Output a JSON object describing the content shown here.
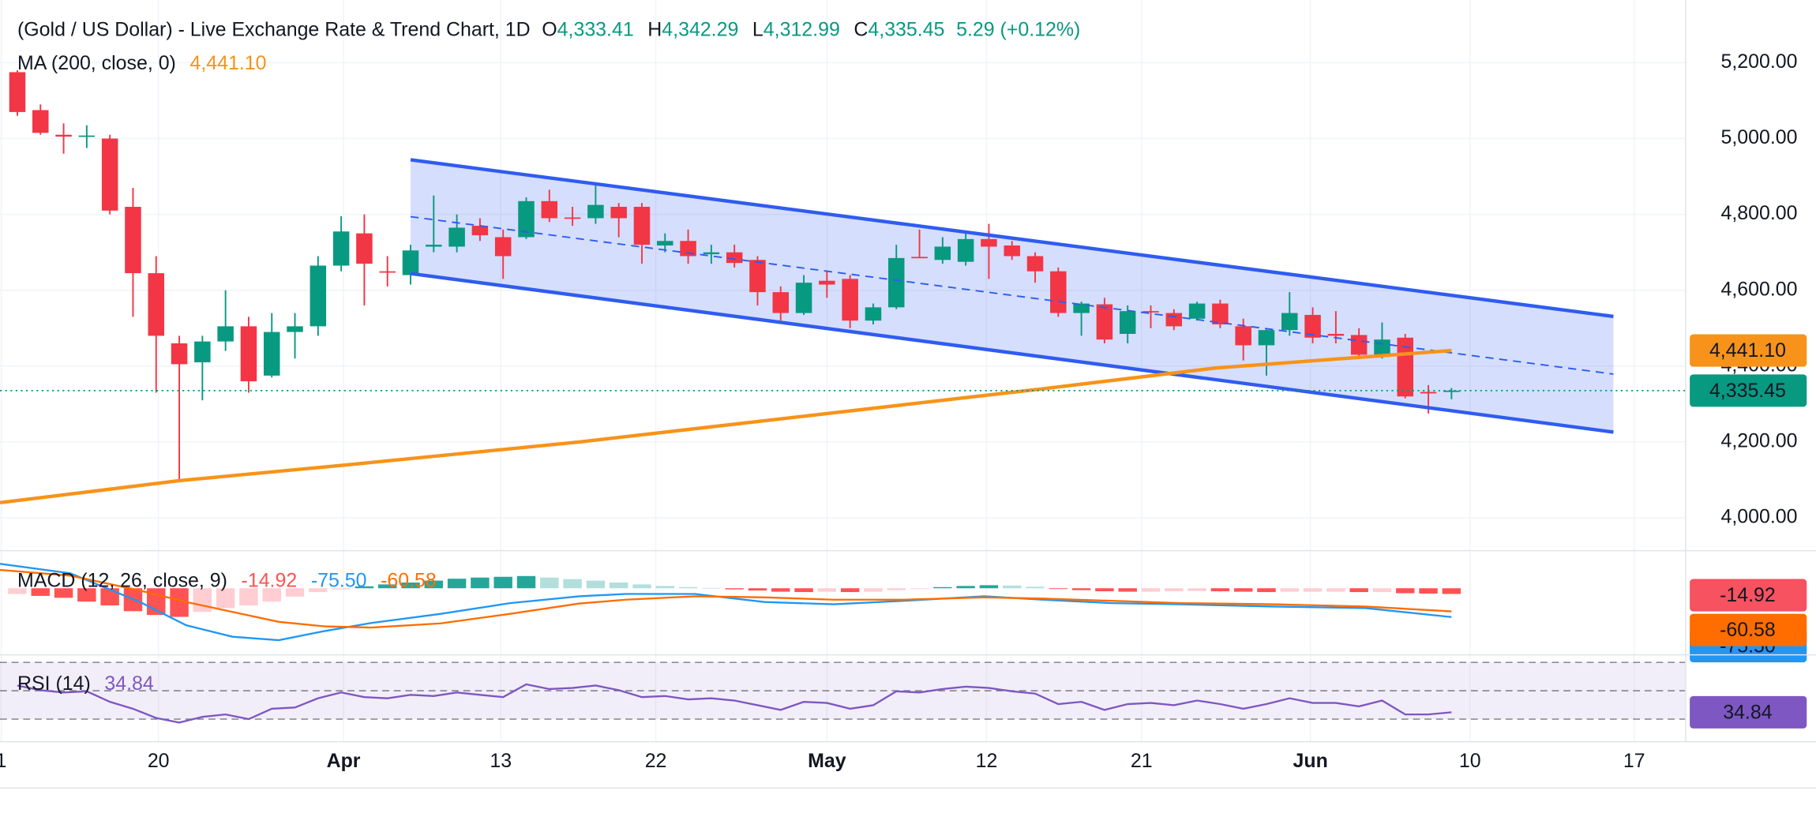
{
  "header": {
    "title": "(Gold / US Dollar) - Live Exchange Rate & Trend Chart, 1D",
    "ohlc": [
      {
        "key": "O",
        "value": "4,333.41"
      },
      {
        "key": "H",
        "value": "4,342.29"
      },
      {
        "key": "L",
        "value": "4,312.99"
      },
      {
        "key": "C",
        "value": "4,335.45"
      }
    ],
    "change": "5.29 (+0.12%)"
  },
  "chart_data": [
    {
      "type": "candlestick",
      "xlim": [
        -0.75,
        72.1
      ],
      "xticks": [
        {
          "value": -0.7,
          "label": "1"
        },
        {
          "value": 6.1,
          "label": "20"
        },
        {
          "value": 14.1,
          "label": "Apr"
        },
        {
          "value": 20.9,
          "label": "13"
        },
        {
          "value": 27.6,
          "label": "22"
        },
        {
          "value": 35.0,
          "label": "May"
        },
        {
          "value": 41.9,
          "label": "12"
        },
        {
          "value": 48.6,
          "label": "21"
        },
        {
          "value": 55.9,
          "label": "Jun"
        },
        {
          "value": 62.8,
          "label": "10"
        },
        {
          "value": 69.9,
          "label": "17"
        }
      ],
      "ylim": [
        3915,
        5365
      ],
      "yticks": [
        {
          "value": 4000,
          "label": "4,000.00"
        },
        {
          "value": 4200,
          "label": "4,200.00"
        },
        {
          "value": 4400,
          "label": "4,400.00"
        },
        {
          "value": 4600,
          "label": "4,600.00"
        },
        {
          "value": 4800,
          "label": "4,800.00"
        },
        {
          "value": 5000,
          "label": "5,000.00"
        },
        {
          "value": 5200,
          "label": "5,200.00"
        }
      ],
      "grid": true,
      "up_color": "#089981",
      "down_color": "#f23645",
      "candles": {
        "open": [
          5175,
          5075,
          5010,
          5005,
          5000,
          4820,
          4645,
          4460,
          4410,
          4465,
          4505,
          4375,
          4490,
          4505,
          4665,
          4750,
          4650,
          4640,
          4715,
          4715,
          4770,
          4740,
          4740,
          4835,
          4792,
          4790,
          4820,
          4820,
          4718,
          4730,
          4695,
          4700,
          4680,
          4595,
          4540,
          4625,
          4630,
          4520,
          4555,
          4688,
          4680,
          4675,
          4735,
          4718,
          4690,
          4650,
          4540,
          4563,
          4485,
          4545,
          4540,
          4525,
          4565,
          4505,
          4455,
          4495,
          4535,
          4485,
          4482,
          4430,
          4475,
          4332,
          4333.41
        ],
        "high": [
          5180,
          5090,
          5040,
          5035,
          5010,
          4870,
          4690,
          4480,
          4480,
          4600,
          4530,
          4540,
          4540,
          4690,
          4795,
          4800,
          4690,
          4720,
          4850,
          4800,
          4790,
          4760,
          4845,
          4865,
          4820,
          4880,
          4830,
          4830,
          4750,
          4760,
          4720,
          4720,
          4690,
          4610,
          4640,
          4650,
          4640,
          4565,
          4720,
          4760,
          4740,
          4750,
          4775,
          4730,
          4700,
          4660,
          4570,
          4580,
          4560,
          4560,
          4550,
          4570,
          4575,
          4525,
          4500,
          4595,
          4555,
          4545,
          4500,
          4515,
          4485,
          4350,
          4342.29
        ],
        "low": [
          5060,
          5010,
          4960,
          4975,
          4800,
          4530,
          4330,
          4100,
          4310,
          4440,
          4330,
          4370,
          4420,
          4480,
          4650,
          4560,
          4610,
          4615,
          4700,
          4700,
          4730,
          4630,
          4735,
          4780,
          4770,
          4775,
          4740,
          4670,
          4700,
          4670,
          4670,
          4660,
          4560,
          4520,
          4535,
          4580,
          4500,
          4510,
          4550,
          4685,
          4670,
          4665,
          4630,
          4680,
          4620,
          4530,
          4480,
          4460,
          4460,
          4500,
          4495,
          4520,
          4500,
          4415,
          4375,
          4480,
          4460,
          4460,
          4420,
          4420,
          4315,
          4275,
          4312.99
        ],
        "close": [
          5070,
          5015,
          5005,
          5008,
          4810,
          4645,
          4480,
          4405,
          4465,
          4505,
          4360,
          4490,
          4505,
          4665,
          4755,
          4670,
          4648,
          4705,
          4720,
          4765,
          4745,
          4690,
          4835,
          4790,
          4790,
          4825,
          4790,
          4720,
          4730,
          4690,
          4700,
          4672,
          4595,
          4540,
          4620,
          4615,
          4520,
          4555,
          4685,
          4685,
          4715,
          4735,
          4715,
          4690,
          4650,
          4540,
          4565,
          4470,
          4545,
          4543,
          4505,
          4565,
          4510,
          4455,
          4495,
          4540,
          4475,
          4480,
          4430,
          4470,
          4320,
          4328,
          4335.45
        ]
      },
      "last_price_label": "4,335.45",
      "ma": {
        "name": "MA (200, close, 0)",
        "value_label": "4,441.10",
        "color": "#f7931a",
        "x": [
          -0.75,
          7,
          14.3,
          24.3,
          34.3,
          44.3,
          51.8,
          62
        ],
        "values": [
          4040,
          4098,
          4140,
          4200,
          4270,
          4340,
          4395,
          4441.1
        ]
      },
      "channel": {
        "color": "#2f5cf0",
        "x": [
          17,
          69
        ],
        "upper": [
          4944,
          4531
        ],
        "middle": [
          4794,
          4379
        ],
        "lower": [
          4644,
          4226
        ]
      }
    },
    {
      "type": "macd",
      "title": "MACD (12, 26, close, 9)",
      "ylim": [
        -173,
        97
      ],
      "histogram": {
        "value_label": "-14.92",
        "colors": {
          "grow_above": "#26a69a",
          "fall_above": "#b2dfdb",
          "grow_below": "#ff5252",
          "fall_below": "#ffcdd2"
        },
        "values": [
          -15,
          -20,
          -25,
          -35,
          -45,
          -60,
          -70,
          -75,
          -62,
          -52,
          -45,
          -35,
          -22,
          -10,
          -3,
          5,
          10,
          15,
          20,
          25,
          28,
          30,
          32,
          28,
          24,
          20,
          15,
          10,
          6,
          3,
          1,
          -3,
          -6,
          -9,
          -10,
          -9,
          -10,
          -9,
          -5,
          -2,
          3,
          6,
          8,
          7,
          4,
          -2,
          -5,
          -8,
          -9,
          -9,
          -8,
          -7,
          -8,
          -9,
          -10,
          -9,
          -9,
          -9,
          -10,
          -10,
          -13,
          -14,
          -14.92
        ]
      },
      "x": [
        -0.75,
        2.3,
        5.3,
        7.3,
        9.3,
        11.3,
        13.3,
        15.3,
        18.3,
        21.3,
        24.3,
        26.3,
        29.3,
        32.3,
        35.3,
        38.3,
        41.8,
        44.3,
        47.3,
        50.3,
        54.3,
        58.3,
        62
      ],
      "series": [
        {
          "name": "MACD",
          "color": "#2196f3",
          "value_label": "-75.50",
          "values": [
            64,
            39,
            -36,
            -97,
            -127,
            -136,
            -112,
            -91,
            -67,
            -39,
            -21,
            -15,
            -15,
            -36,
            -42,
            -33,
            -21,
            -30,
            -39,
            -42,
            -48,
            -52,
            -75.5
          ]
        },
        {
          "name": "Signal",
          "color": "#ff6d00",
          "value_label": "-60.58",
          "values": [
            48,
            33,
            -6,
            -36,
            -62,
            -88,
            -100,
            -103,
            -92,
            -67,
            -40,
            -30,
            -21,
            -24,
            -30,
            -30,
            -24,
            -27,
            -33,
            -39,
            -42,
            -48,
            -60.58
          ]
        }
      ]
    },
    {
      "type": "rsi",
      "title": "RSI (14)",
      "value_label": "34.84",
      "color": "#7e57c2",
      "ylim": [
        24.3,
        74.9
      ],
      "bands": [
        70,
        50,
        30
      ],
      "values": [
        53.7,
        50.4,
        48.8,
        49.6,
        42.2,
        37.3,
        30.8,
        27.6,
        31.6,
        33.3,
        30,
        37.3,
        38.2,
        44.7,
        48.8,
        45.5,
        44.7,
        47.1,
        46.3,
        48.8,
        47.1,
        45.5,
        54.5,
        51.2,
        52,
        53.7,
        50.4,
        45.5,
        46.3,
        43.9,
        44.7,
        43.1,
        39.8,
        36.5,
        42.2,
        41.4,
        37.3,
        39.8,
        49.6,
        48.8,
        51.2,
        52.9,
        52,
        49.6,
        48,
        40.6,
        42.2,
        36.5,
        40.6,
        41.4,
        39.8,
        43.1,
        40.6,
        37.3,
        40.6,
        44.7,
        41.4,
        41.4,
        39,
        43.1,
        33.3,
        33.3,
        34.84
      ]
    }
  ]
}
